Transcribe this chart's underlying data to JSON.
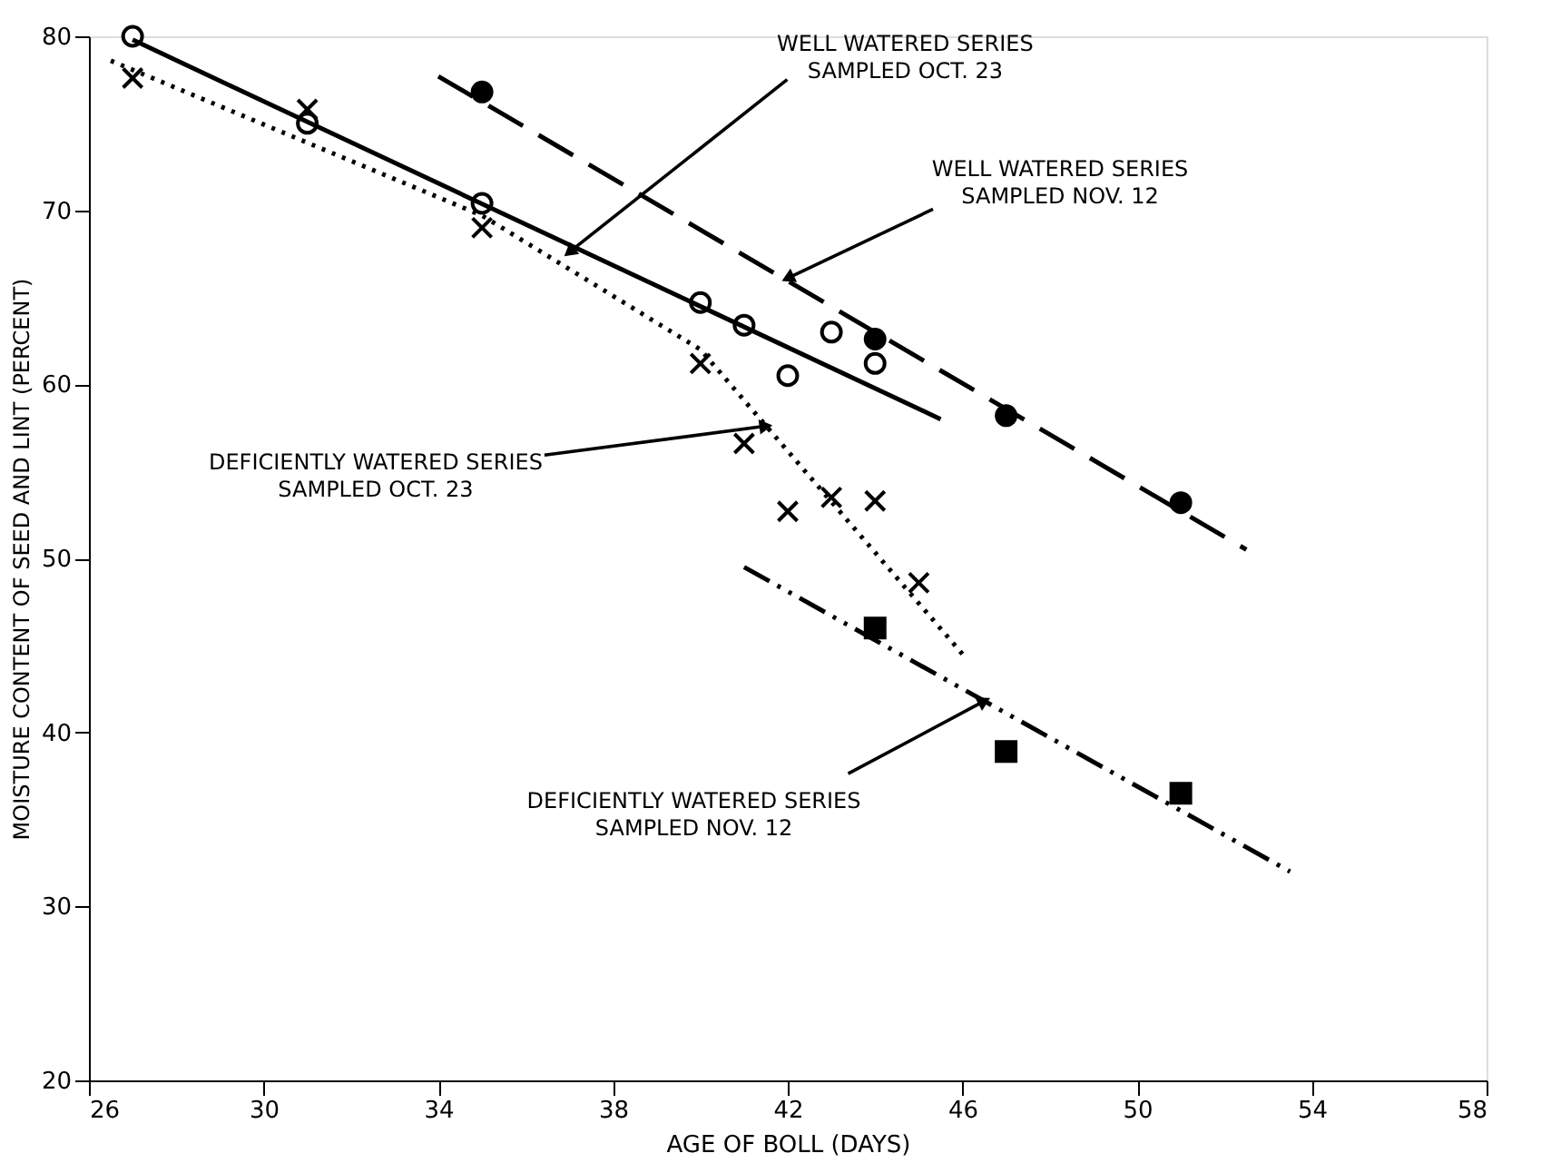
{
  "chart_data": {
    "type": "scatter",
    "xlabel": "AGE OF BOLL (DAYS)",
    "ylabel": "MOISTURE CONTENT OF SEED AND LINT (PERCENT)",
    "xlim": [
      26,
      58
    ],
    "xticks": [
      26,
      30,
      34,
      38,
      42,
      46,
      50,
      54,
      58
    ],
    "ylim": [
      20,
      80
    ],
    "yticks": [
      20,
      30,
      40,
      50,
      60,
      70,
      80
    ],
    "grid": false,
    "series": [
      {
        "marker": "circle_open",
        "color": "#000000",
        "x": [
          27,
          31,
          35,
          40,
          41,
          42,
          43,
          44
        ],
        "values": [
          80,
          75.0,
          70.4,
          64.7,
          63.4,
          60.5,
          63.0,
          61.2
        ]
      },
      {
        "marker": "circle",
        "color": "#000000",
        "x": [
          35,
          44,
          47,
          51
        ],
        "values": [
          76.8,
          62.6,
          58.2,
          53.2
        ]
      },
      {
        "marker": "cross",
        "color": "#000000",
        "x": [
          27,
          31,
          35,
          40,
          41,
          42,
          43,
          44,
          45
        ],
        "values": [
          77.6,
          75.8,
          69.0,
          61.2,
          56.6,
          52.7,
          53.5,
          53.3,
          48.6
        ]
      },
      {
        "marker": "square",
        "color": "#000000",
        "x": [
          44,
          47,
          51
        ],
        "values": [
          46.0,
          38.9,
          36.5
        ]
      },
      {
        "type": "line",
        "line_style": "solid",
        "color": "#000000",
        "x": [
          27,
          45.5
        ],
        "values": [
          79.8,
          58.0
        ]
      },
      {
        "type": "line",
        "line_style": "dashed",
        "color": "#000000",
        "x": [
          34,
          52.5
        ],
        "values": [
          77.7,
          50.5
        ]
      },
      {
        "type": "line",
        "line_style": "dotted",
        "color": "#000000",
        "x": [
          26.5,
          35,
          40,
          46
        ],
        "values": [
          78.6,
          69.7,
          62.0,
          44.5
        ]
      },
      {
        "type": "line",
        "line_style": "dashdot",
        "color": "#000000",
        "x": [
          41,
          53.5
        ],
        "values": [
          49.5,
          32.0
        ]
      }
    ],
    "annotations": [
      {
        "text": "WELL WATERED SERIES\nSAMPLED OCT. 23",
        "x": 37,
        "y": 67.6
      },
      {
        "text": "WELL WATERED SERIES\nSAMPLED NOV. 12",
        "x": 42,
        "y": 66.1
      },
      {
        "text": "DEFICIENTLY WATERED SERIES\nSAMPLED OCT. 23",
        "x": 41.5,
        "y": 57.6
      },
      {
        "text": "DEFICIENTLY WATERED SERIES\nSAMPLED NOV. 12",
        "x": 46.5,
        "y": 41.8
      }
    ]
  }
}
